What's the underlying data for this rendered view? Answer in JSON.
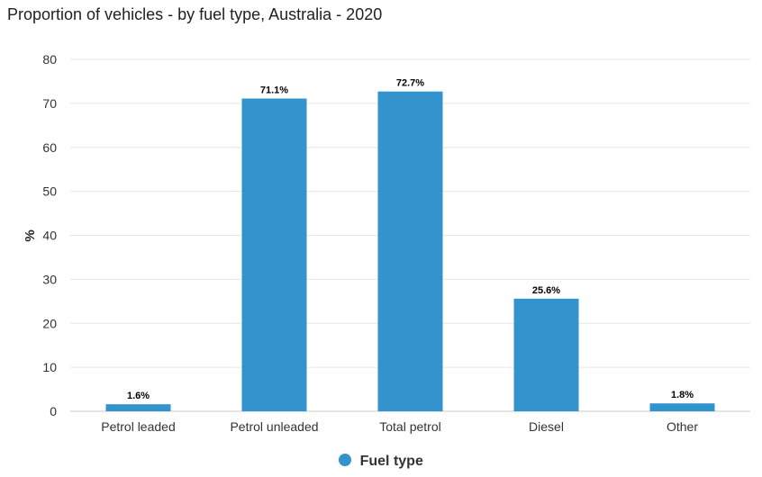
{
  "chart_data": {
    "type": "bar",
    "title": "Proportion of vehicles - by fuel type, Australia - 2020",
    "xlabel": "",
    "ylabel": "%",
    "ylim": [
      0,
      80
    ],
    "yticks": [
      0,
      10,
      20,
      30,
      40,
      50,
      60,
      70,
      80
    ],
    "categories": [
      "Petrol leaded",
      "Petrol unleaded",
      "Total petrol",
      "Diesel",
      "Other"
    ],
    "series": [
      {
        "name": "Fuel type",
        "values": [
          1.6,
          71.1,
          72.7,
          25.6,
          1.8
        ],
        "data_labels": [
          "1.6%",
          "71.1%",
          "72.7%",
          "25.6%",
          "1.8%"
        ],
        "color": "#3393cc"
      }
    ],
    "grid": true,
    "legend_position": "bottom-center"
  }
}
